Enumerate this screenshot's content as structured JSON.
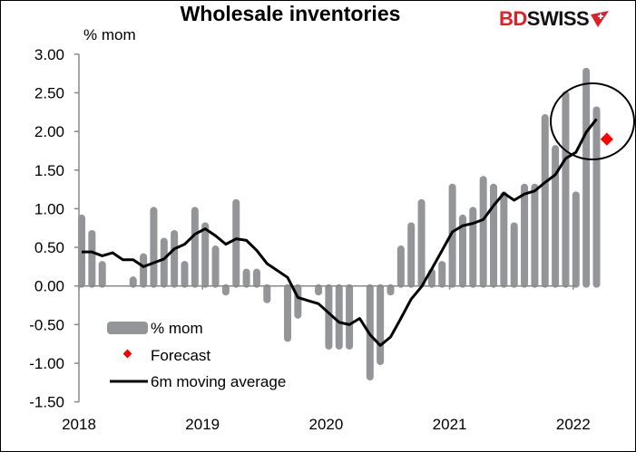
{
  "chart_data": {
    "type": "bar",
    "title": "Wholesale inventories",
    "ylabel": "% mom",
    "ylim": [
      -1.5,
      3.0
    ],
    "yticks": [
      "3.00",
      "2.50",
      "2.00",
      "1.50",
      "1.00",
      "0.50",
      "0.00",
      "-0.50",
      "-1.00",
      "-1.50"
    ],
    "xtick_labels": [
      "2018",
      "2019",
      "2020",
      "2021",
      "2022"
    ],
    "x_start": "2018-01",
    "frequency": "monthly",
    "grid": false,
    "legend_position": "bottom-left",
    "series": [
      {
        "name": "% mom",
        "type": "bar",
        "color": "#939598",
        "values": [
          0.9,
          0.7,
          0.3,
          0,
          0,
          0.1,
          0.4,
          1.0,
          0.6,
          0.7,
          0.3,
          1.0,
          0.8,
          0.5,
          -0.1,
          1.1,
          0.2,
          0.2,
          -0.2,
          0,
          -0.7,
          -0.4,
          0,
          -0.1,
          -0.8,
          -0.8,
          -0.8,
          0,
          -1.2,
          -1.0,
          -0.1,
          0.5,
          0.8,
          1.1,
          0.2,
          0.3,
          1.3,
          0.9,
          1.0,
          1.4,
          1.3,
          1.2,
          0.8,
          1.3,
          1.3,
          2.2,
          1.8,
          2.5,
          1.2,
          2.8,
          2.3
        ]
      },
      {
        "name": "Forecast",
        "type": "scatter",
        "color": "#ff0000",
        "x": "2022-04",
        "value": 1.9
      },
      {
        "name": "6m moving average",
        "type": "line",
        "color": "#000000",
        "values": [
          0.44,
          0.44,
          0.39,
          0.43,
          0.34,
          0.34,
          0.25,
          0.3,
          0.35,
          0.48,
          0.54,
          0.67,
          0.74,
          0.65,
          0.54,
          0.61,
          0.59,
          0.46,
          0.29,
          0.2,
          0.11,
          -0.15,
          -0.19,
          -0.23,
          -0.35,
          -0.47,
          -0.5,
          -0.42,
          -0.63,
          -0.77,
          -0.66,
          -0.42,
          -0.17,
          -0.01,
          0.22,
          0.46,
          0.7,
          0.78,
          0.81,
          0.86,
          1.04,
          1.2,
          1.11,
          1.19,
          1.23,
          1.34,
          1.44,
          1.65,
          1.73,
          1.99,
          2.16
        ]
      }
    ]
  },
  "logo": {
    "part1": "BD",
    "part2": "SWISS"
  }
}
